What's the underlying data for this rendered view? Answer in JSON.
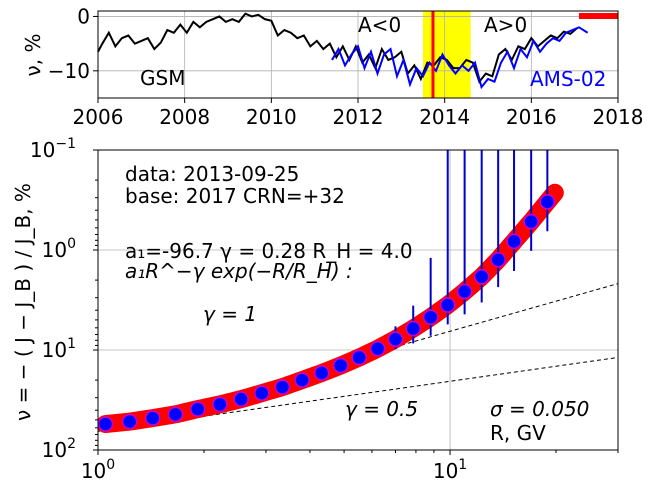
{
  "chart_data": [
    {
      "type": "line",
      "ylabel": "ν, %",
      "xlim": [
        2006,
        2018
      ],
      "ylim": [
        -15,
        1
      ],
      "x_ticks": [
        "2006",
        "2008",
        "2010",
        "2012",
        "2014",
        "2016",
        "2018"
      ],
      "y_ticks": [
        "0",
        "−10"
      ],
      "grid": true,
      "annotations": {
        "gsm": "GSM",
        "a_neg": "A<0",
        "a_pos": "A>0",
        "ams": "AMS-02"
      },
      "highlight_band": [
        2013.5,
        2014.6
      ],
      "marker_date": 2013.73,
      "marker_bar": [
        2017.1,
        2018
      ],
      "colors": {
        "gsm": "#000000",
        "ams": "#0000ff",
        "band": "#ffff00",
        "marker": "#ff0000"
      },
      "series": [
        {
          "x": [
            2006.0,
            2006.1,
            2006.25,
            2006.4,
            2006.55,
            2006.7,
            2006.85,
            2007.0,
            2007.15,
            2007.3,
            2007.45,
            2007.6,
            2007.75,
            2007.9,
            2008.05,
            2008.2,
            2008.35,
            2008.5,
            2008.65,
            2008.8,
            2008.95,
            2009.1,
            2009.25,
            2009.4,
            2009.55,
            2009.7,
            2009.85,
            2010.0,
            2010.15,
            2010.3,
            2010.45,
            2010.6,
            2010.75,
            2010.9,
            2011.05,
            2011.2,
            2011.35,
            2011.5,
            2011.65,
            2011.8,
            2011.95,
            2012.1,
            2012.25,
            2012.4,
            2012.55,
            2012.7,
            2012.85,
            2013.0,
            2013.15,
            2013.3,
            2013.45,
            2013.6,
            2013.75,
            2013.9,
            2014.05,
            2014.2,
            2014.35,
            2014.5,
            2014.65,
            2014.8,
            2014.95,
            2015.1,
            2015.25,
            2015.4,
            2015.55,
            2015.7,
            2015.85,
            2016.0,
            2016.15,
            2016.3,
            2016.45,
            2016.6,
            2016.75,
            2016.9,
            2017.05
          ],
          "y": [
            -6.5,
            -5.0,
            -3.0,
            -5.5,
            -4.0,
            -3.5,
            -5.0,
            -4.5,
            -4.0,
            -6.0,
            -4.8,
            -2.5,
            -3.0,
            -1.5,
            -3.0,
            -1.0,
            -2.0,
            -1.0,
            -0.5,
            0.0,
            -1.0,
            -0.5,
            -1.0,
            0.5,
            0.0,
            0.3,
            -0.5,
            -0.8,
            -3.5,
            -2.5,
            -3.0,
            -4.0,
            -3.5,
            -5.5,
            -4.5,
            -6.0,
            -5.0,
            -7.5,
            -5.5,
            -8.0,
            -5.5,
            -8.5,
            -7.0,
            -9.5,
            -6.0,
            -8.0,
            -7.5,
            -6.5,
            -10.5,
            -9.0,
            -11.5,
            -8.5,
            -9.0,
            -7.5,
            -8.0,
            -9.5,
            -9.5,
            -8.0,
            -8.5,
            -12.0,
            -10.5,
            -11.0,
            -7.0,
            -6.0,
            -8.0,
            -5.5,
            -6.0,
            -4.0,
            -5.5,
            -4.5,
            -3.5,
            -4.0,
            -2.8,
            -3.2,
            -2.2
          ]
        },
        {
          "x": [
            2011.4,
            2011.55,
            2011.7,
            2011.85,
            2012.0,
            2012.15,
            2012.3,
            2012.45,
            2012.6,
            2012.75,
            2012.9,
            2013.05,
            2013.2,
            2013.35,
            2013.5,
            2013.65,
            2013.8,
            2013.95,
            2014.1,
            2014.25,
            2014.4,
            2014.55,
            2014.7,
            2014.85,
            2015.0,
            2015.15,
            2015.3,
            2015.45,
            2015.6,
            2015.75,
            2015.9,
            2016.05,
            2016.2,
            2016.35,
            2016.5,
            2016.65,
            2016.8,
            2016.95,
            2017.1,
            2017.3
          ],
          "y": [
            -8.0,
            -6.0,
            -9.0,
            -7.0,
            -5.5,
            -9.5,
            -6.5,
            -10.5,
            -7.0,
            -6.0,
            -11.0,
            -8.0,
            -12.5,
            -9.5,
            -11.0,
            -8.5,
            -10.0,
            -7.0,
            -9.0,
            -10.5,
            -9.0,
            -10.0,
            -8.5,
            -13.0,
            -11.5,
            -12.0,
            -8.5,
            -6.5,
            -9.5,
            -6.0,
            -7.5,
            -4.5,
            -6.5,
            -5.0,
            -4.0,
            -4.5,
            -3.0,
            -2.5,
            -2.0,
            -3.0
          ]
        }
      ]
    },
    {
      "type": "scatter",
      "xlabel": "R, GV",
      "ylabel": "ν = − ( J − J_B ) / J_B, %",
      "x_scale": "log",
      "y_scale": "log",
      "y_inverted": true,
      "xlim": [
        1,
        30
      ],
      "ylim": [
        0.1,
        100
      ],
      "x_ticks": [
        {
          "v": 1,
          "m": "10",
          "e": "0"
        },
        {
          "v": 10,
          "m": "10",
          "e": "1"
        }
      ],
      "y_ticks": [
        {
          "v": 0.1,
          "m": "10",
          "e": "−1"
        },
        {
          "v": 1,
          "m": "10",
          "e": "0"
        },
        {
          "v": 10,
          "m": "10",
          "e": "1"
        },
        {
          "v": 100,
          "m": "10",
          "e": "2"
        }
      ],
      "grid": true,
      "text": {
        "data_line": "data: 2013-09-25",
        "base_line": "base: 2017   CRN=+32",
        "params_line": "a₁=-96.7  γ = 0.28  R_H =  4.0",
        "formula_line": "a₁R^−γ exp(−R/R_H) :",
        "gamma1": "γ = 1",
        "gamma05": "γ = 0.5",
        "sigma": "σ = 0.050"
      },
      "colors": {
        "points": "#0000ff",
        "point_edge": "#cc00cc",
        "fit": "#ff0000",
        "errorbar": "#0000cc",
        "guide": "#000000"
      },
      "fit": {
        "a1": -96.7,
        "gamma": 0.28,
        "R_H": 4.0
      },
      "guides": [
        {
          "gamma": 1,
          "r0": 1,
          "v0": 65
        },
        {
          "gamma": 0.5,
          "r0": 1,
          "v0": 65
        }
      ],
      "points": {
        "x": [
          1.05,
          1.23,
          1.43,
          1.66,
          1.92,
          2.22,
          2.55,
          2.92,
          3.34,
          3.8,
          4.32,
          4.89,
          5.52,
          6.23,
          7.0,
          7.86,
          8.81,
          9.85,
          11.0,
          12.3,
          13.7,
          15.2,
          17.0,
          18.9
        ],
        "y": [
          55,
          52,
          48,
          44,
          39,
          35,
          31,
          27,
          23.5,
          20,
          17,
          14.3,
          11.9,
          9.7,
          7.8,
          6.1,
          4.7,
          3.55,
          2.6,
          1.85,
          1.25,
          0.82,
          0.52,
          0.33
        ],
        "err_low": [
          1,
          1,
          1,
          1,
          1,
          1,
          1,
          1,
          1,
          1,
          1,
          1,
          1.5,
          1.5,
          2,
          2.5,
          3.5,
          4.5,
          6,
          8,
          10,
          20,
          25,
          30
        ],
        "err_high": [
          1,
          1,
          1,
          1,
          1,
          1,
          1,
          1,
          1,
          1,
          1,
          1,
          1.5,
          1.5,
          2,
          2.5,
          2.5,
          2.0,
          1.8,
          1.5,
          1.1,
          0.8,
          0.5,
          0.32
        ]
      }
    }
  ]
}
